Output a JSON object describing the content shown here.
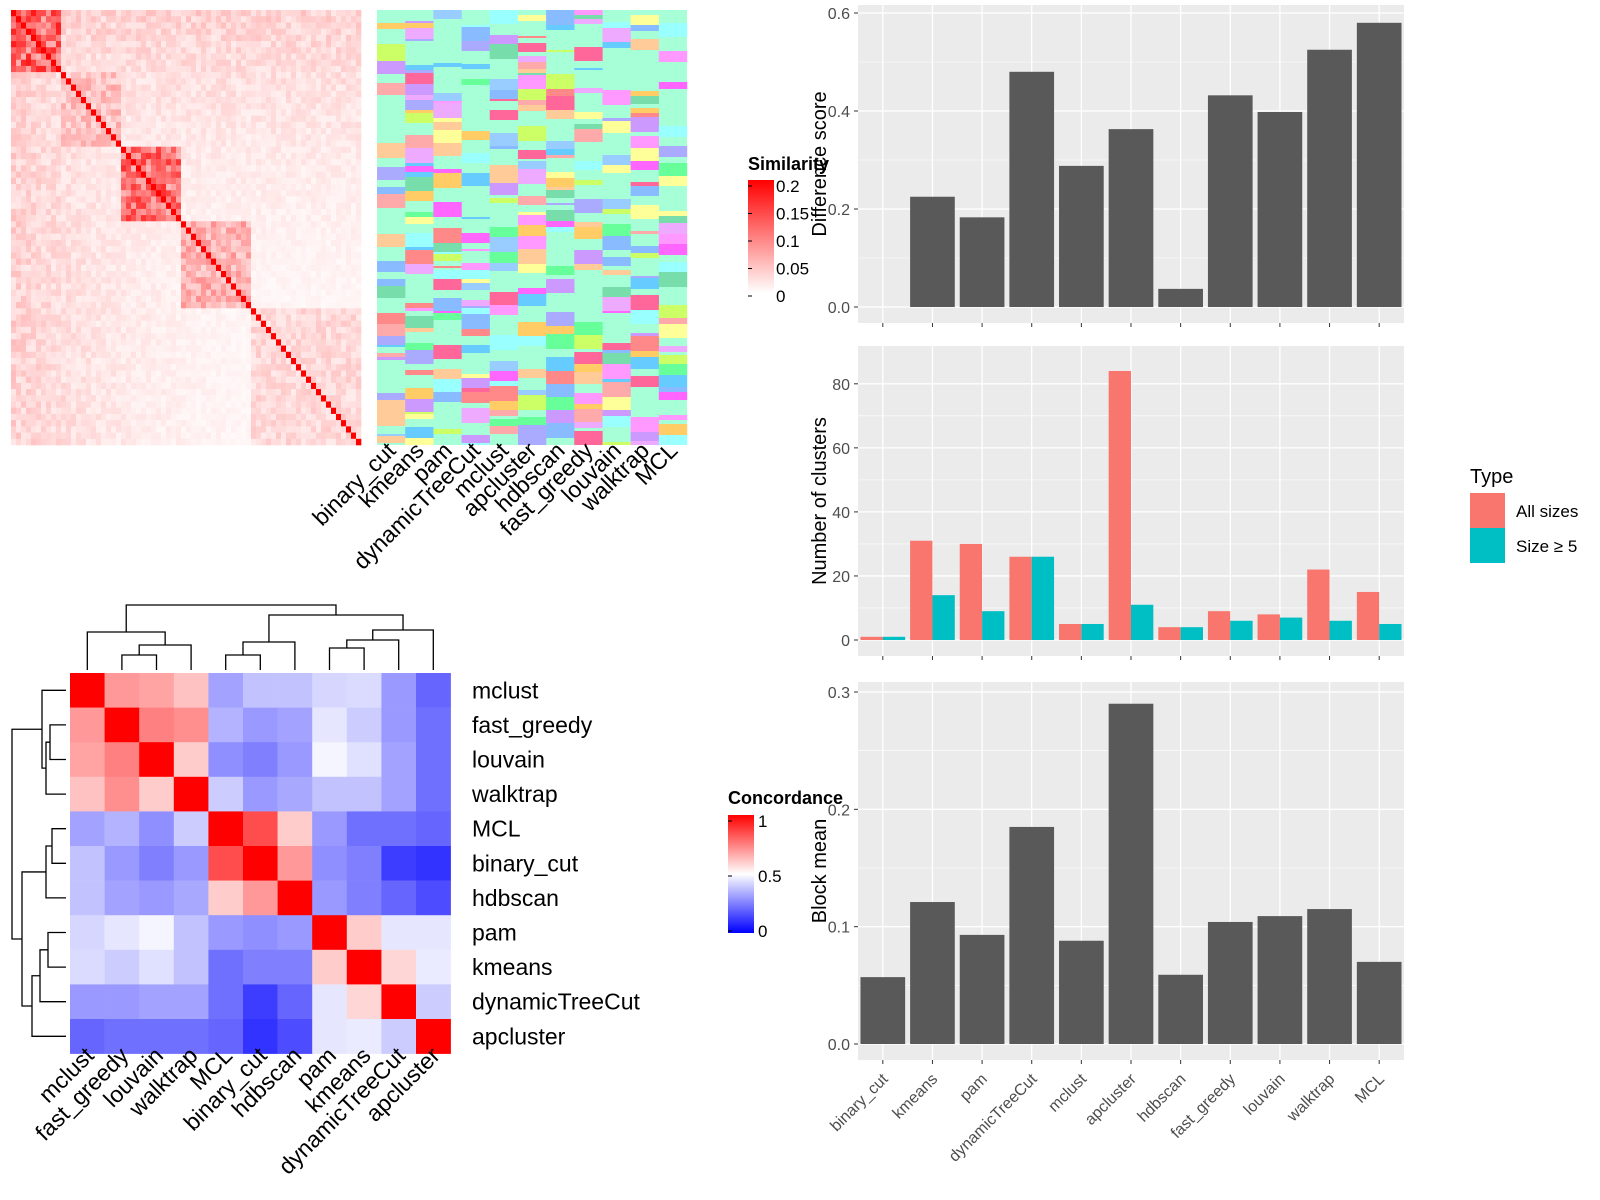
{
  "chart_data": [
    {
      "type": "heatmap",
      "legend": {
        "title": "Similarity",
        "ticks": [
          "0.2",
          "0.15",
          "0.1",
          "0.05",
          "0"
        ],
        "colors": [
          "#ffffff",
          "#ff0000"
        ]
      },
      "description_values": "similarity matrix of genes, ordered by clustering"
    },
    {
      "type": "heatmap",
      "columns": [
        "binary_cut",
        "kmeans",
        "pam",
        "dynamicTreeCut",
        "mclust",
        "apcluster",
        "hdbscan",
        "fast_greedy",
        "louvain",
        "walktrap",
        "MCL"
      ]
    },
    {
      "type": "heatmap",
      "legend": {
        "title": "Concordance",
        "ticks": [
          "1",
          "0.5",
          "0"
        ],
        "colors": [
          "#0000ff",
          "#ffffff",
          "#ff0000"
        ]
      },
      "rows": [
        "mclust",
        "fast_greedy",
        "louvain",
        "walktrap",
        "MCL",
        "binary_cut",
        "hdbscan",
        "pam",
        "kmeans",
        "dynamicTreeCut",
        "apcluster"
      ],
      "columns": [
        "mclust",
        "fast_greedy",
        "louvain",
        "walktrap",
        "MCL",
        "binary_cut",
        "hdbscan",
        "pam",
        "kmeans",
        "dynamicTreeCut",
        "apcluster"
      ],
      "values": [
        [
          1.0,
          0.7,
          0.68,
          0.62,
          0.32,
          0.38,
          0.38,
          0.42,
          0.43,
          0.3,
          0.2
        ],
        [
          0.7,
          1.0,
          0.75,
          0.72,
          0.35,
          0.3,
          0.32,
          0.45,
          0.4,
          0.3,
          0.22
        ],
        [
          0.68,
          0.75,
          1.0,
          0.6,
          0.28,
          0.25,
          0.3,
          0.48,
          0.44,
          0.32,
          0.22
        ],
        [
          0.62,
          0.72,
          0.6,
          1.0,
          0.4,
          0.3,
          0.33,
          0.38,
          0.38,
          0.32,
          0.22
        ],
        [
          0.32,
          0.35,
          0.28,
          0.4,
          1.0,
          0.85,
          0.6,
          0.3,
          0.22,
          0.22,
          0.2
        ],
        [
          0.38,
          0.3,
          0.25,
          0.3,
          0.85,
          1.0,
          0.7,
          0.28,
          0.25,
          0.12,
          0.1
        ],
        [
          0.38,
          0.32,
          0.3,
          0.33,
          0.6,
          0.7,
          1.0,
          0.3,
          0.25,
          0.2,
          0.15
        ],
        [
          0.42,
          0.45,
          0.48,
          0.38,
          0.3,
          0.28,
          0.3,
          1.0,
          0.6,
          0.45,
          0.45
        ],
        [
          0.43,
          0.4,
          0.44,
          0.38,
          0.22,
          0.25,
          0.25,
          0.6,
          1.0,
          0.58,
          0.46
        ],
        [
          0.3,
          0.3,
          0.32,
          0.32,
          0.22,
          0.12,
          0.2,
          0.45,
          0.58,
          1.0,
          0.4
        ],
        [
          0.2,
          0.22,
          0.22,
          0.22,
          0.2,
          0.1,
          0.15,
          0.45,
          0.46,
          0.4,
          1.0
        ]
      ]
    },
    {
      "type": "bar",
      "categories": [
        "binary_cut",
        "kmeans",
        "pam",
        "dynamicTreeCut",
        "mclust",
        "apcluster",
        "hdbscan",
        "fast_greedy",
        "louvain",
        "walktrap",
        "MCL"
      ],
      "values": [
        0.0,
        0.225,
        0.183,
        0.48,
        0.288,
        0.363,
        0.037,
        0.432,
        0.398,
        0.525,
        0.58
      ],
      "ylabel": "Difference score",
      "ylim": [
        0,
        0.6
      ],
      "yticks": [
        "0.0",
        "0.2",
        "0.4",
        "0.6"
      ]
    },
    {
      "type": "bar",
      "categories": [
        "binary_cut",
        "kmeans",
        "pam",
        "dynamicTreeCut",
        "mclust",
        "apcluster",
        "hdbscan",
        "fast_greedy",
        "louvain",
        "walktrap",
        "MCL"
      ],
      "series": [
        {
          "name": "All sizes",
          "values": [
            1,
            31,
            30,
            26,
            5,
            84,
            4,
            9,
            8,
            22,
            15
          ],
          "color": "#F8766D"
        },
        {
          "name": "Size ≥ 5",
          "values": [
            1,
            14,
            9,
            26,
            5,
            11,
            4,
            6,
            7,
            6,
            5
          ],
          "color": "#00BFC4"
        }
      ],
      "ylabel": "Number of clusters",
      "ylim": [
        0,
        84
      ],
      "yticks": [
        "0",
        "20",
        "40",
        "60",
        "80"
      ],
      "legend": {
        "title": "Type",
        "position": "right"
      }
    },
    {
      "type": "bar",
      "categories": [
        "binary_cut",
        "kmeans",
        "pam",
        "dynamicTreeCut",
        "mclust",
        "apcluster",
        "hdbscan",
        "fast_greedy",
        "louvain",
        "walktrap",
        "MCL"
      ],
      "values": [
        0.057,
        0.121,
        0.093,
        0.185,
        0.088,
        0.29,
        0.059,
        0.104,
        0.109,
        0.115,
        0.07
      ],
      "ylabel": "Block mean",
      "ylim": [
        0,
        0.3
      ],
      "yticks": [
        "0.0",
        "0.1",
        "0.2",
        "0.3"
      ]
    }
  ]
}
